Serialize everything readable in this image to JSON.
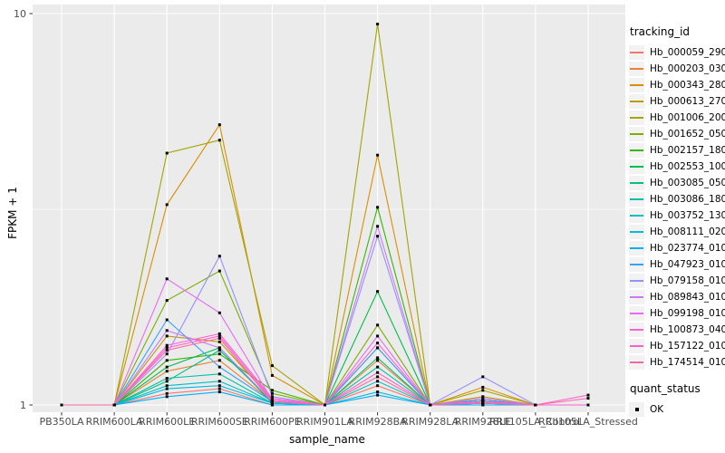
{
  "legend": {
    "tracking_title": "tracking_id",
    "quant_title": "quant_status",
    "quant_items": [
      {
        "label": "OK",
        "marker": "black-square"
      }
    ]
  },
  "chart_data": {
    "type": "line",
    "title": "",
    "xlabel": "sample_name",
    "ylabel": "FPKM + 1",
    "y_scale": "log10",
    "ylim": [
      1,
      10
    ],
    "y_ticks": [
      {
        "label": "1",
        "value": 1
      },
      {
        "label": "10",
        "value": 10
      }
    ],
    "minor_gridlines": [
      3.162
    ],
    "grid": "on",
    "legend_position": "right",
    "point_marker": {
      "shape": "square",
      "color": "#000000",
      "size": 3
    },
    "style": {
      "panel_bg": "#EBEBEB",
      "grid_color": "#FFFFFF",
      "tick_label_color": "#4D4D4D",
      "axis_title_color": "#000000",
      "legend_key_bg": "#F2F2F2"
    },
    "categories": [
      "PB350LA",
      "RRIM600LA",
      "RRIM600LE",
      "RRIM600SE",
      "RRIM600PE",
      "RRIM901LA",
      "RRIM928BA",
      "RRIM928LA",
      "RRIM928LE",
      "RRII105LA_Control",
      "RRII105LA_Stressed"
    ],
    "series": [
      {
        "name": "Hb_000059_290",
        "color": "#F8766D",
        "values": [
          1,
          1,
          1.07,
          1.1,
          1.0,
          1,
          1.12,
          1,
          1.0,
          1,
          1
        ]
      },
      {
        "name": "Hb_000203_030",
        "color": "#EA8331",
        "values": [
          1,
          1,
          1.22,
          1.3,
          1.02,
          1,
          1.3,
          1,
          1.02,
          1,
          1
        ]
      },
      {
        "name": "Hb_000343_280",
        "color": "#D89000",
        "values": [
          1,
          1,
          3.25,
          5.2,
          1.19,
          1,
          4.35,
          1,
          1.11,
          1,
          1
        ]
      },
      {
        "name": "Hb_000613_270",
        "color": "#C09B00",
        "values": [
          1,
          1,
          1.5,
          1.45,
          1.03,
          1,
          1.4,
          1,
          1.05,
          1,
          1
        ]
      },
      {
        "name": "Hb_001006_200",
        "color": "#A3A500",
        "values": [
          1,
          1,
          4.4,
          4.75,
          1.26,
          1,
          9.4,
          1,
          1.09,
          1,
          1
        ]
      },
      {
        "name": "Hb_001652_050",
        "color": "#7CAE00",
        "values": [
          1,
          1,
          1.85,
          2.2,
          1.07,
          1,
          1.6,
          1,
          1.03,
          1,
          1
        ]
      },
      {
        "name": "Hb_002157_180",
        "color": "#39B600",
        "values": [
          1,
          1,
          1.3,
          1.35,
          1.09,
          1,
          3.2,
          1,
          1.03,
          1,
          1
        ]
      },
      {
        "name": "Hb_002553_100",
        "color": "#00BB4E",
        "values": [
          1,
          1,
          1.25,
          1.4,
          1.01,
          1,
          1.95,
          1,
          1.02,
          1,
          1
        ]
      },
      {
        "name": "Hb_003085_050",
        "color": "#00BF7D",
        "values": [
          1,
          1,
          1.15,
          1.38,
          1.02,
          1,
          1.32,
          1,
          1.02,
          1,
          1
        ]
      },
      {
        "name": "Hb_003086_180",
        "color": "#00C1A3",
        "values": [
          1,
          1,
          1.17,
          1.2,
          1.01,
          1,
          1.25,
          1,
          1.01,
          1,
          1
        ]
      },
      {
        "name": "Hb_003752_130",
        "color": "#00BFC4",
        "values": [
          1,
          1,
          1.12,
          1.15,
          1.01,
          1,
          1.15,
          1,
          1.01,
          1,
          1
        ]
      },
      {
        "name": "Hb_008111_020",
        "color": "#00BAE0",
        "values": [
          1,
          1,
          1.1,
          1.12,
          1.01,
          1,
          1.08,
          1,
          1.01,
          1,
          1
        ]
      },
      {
        "name": "Hb_023774_010",
        "color": "#00B0F6",
        "values": [
          1,
          1,
          1.05,
          1.08,
          1.0,
          1,
          1.06,
          1,
          1.0,
          1,
          1
        ]
      },
      {
        "name": "Hb_047923_010",
        "color": "#35A2FF",
        "values": [
          1,
          1,
          1.65,
          1.25,
          1.02,
          1,
          1.4,
          1,
          1.03,
          1,
          1
        ]
      },
      {
        "name": "Hb_079158_010",
        "color": "#9590FF",
        "values": [
          1,
          1,
          1.35,
          2.4,
          1.05,
          1,
          2.7,
          1,
          1.18,
          1,
          1
        ]
      },
      {
        "name": "Hb_089843_010",
        "color": "#C77CFF",
        "values": [
          1,
          1,
          1.55,
          1.4,
          1.02,
          1,
          2.86,
          1,
          1.04,
          1,
          1
        ]
      },
      {
        "name": "Hb_099198_010",
        "color": "#E76BF3",
        "values": [
          1,
          1,
          2.1,
          1.72,
          1.03,
          1,
          1.5,
          1,
          1.02,
          1,
          1
        ]
      },
      {
        "name": "Hb_100873_040",
        "color": "#FA62DB",
        "values": [
          1,
          1,
          1.42,
          1.52,
          1.04,
          1,
          1.44,
          1,
          1.02,
          1,
          1
        ]
      },
      {
        "name": "Hb_157122_010",
        "color": "#FF61CC",
        "values": [
          1,
          1,
          1.4,
          1.5,
          1.03,
          1,
          1.21,
          1,
          1.02,
          1,
          1.06
        ]
      },
      {
        "name": "Hb_174514_010",
        "color": "#FF67A4",
        "values": [
          1,
          1,
          1.38,
          1.48,
          1.02,
          1,
          1.18,
          1,
          1.01,
          1,
          1.04
        ]
      }
    ]
  }
}
